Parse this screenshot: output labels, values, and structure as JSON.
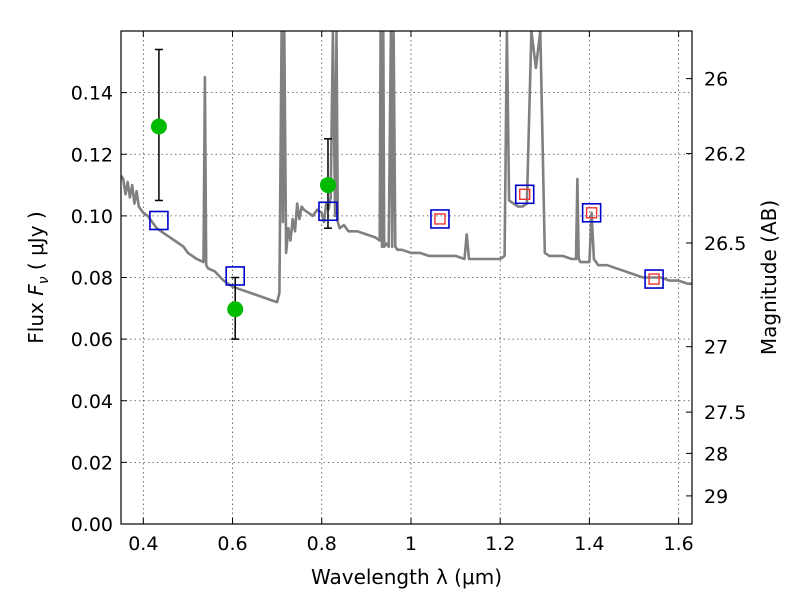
{
  "chart_data": {
    "type": "scatter",
    "xlabel": "Wavelength  λ (μm)",
    "ylabel": "Flux  F_ν  ( μJy )",
    "ylabel_right": "Magnitude (AB)",
    "xlim": [
      0.35,
      1.63
    ],
    "ylim": [
      0,
      0.16
    ],
    "grid": true,
    "x_ticks": [
      0.4,
      0.6,
      0.8,
      1.0,
      1.2,
      1.4,
      1.6
    ],
    "x_tick_labels": [
      "0.4",
      "0.6",
      "0.8",
      "1",
      "1.2",
      "1.4",
      "1.6"
    ],
    "y_ticks": [
      0,
      0.02,
      0.04,
      0.06,
      0.08,
      0.1,
      0.12,
      0.14
    ],
    "y_tick_labels": [
      "0.00",
      "0.02",
      "0.04",
      "0.06",
      "0.08",
      "0.10",
      "0.12",
      "0.14"
    ],
    "mag_ticks": [
      26,
      26.2,
      26.5,
      27,
      27.5,
      28,
      29
    ],
    "mag_tick_labels": [
      "26",
      "26.2",
      "26.5",
      "27",
      "27.5",
      "28",
      "29"
    ],
    "colors": {
      "spectrum": "#808080",
      "observed": "#00bb00",
      "model_blue": "#0000cc",
      "model_red": "#ee3333",
      "errorbar": "#000000"
    },
    "spectrum": {
      "name": "",
      "x": [
        0.35,
        0.355,
        0.36,
        0.365,
        0.37,
        0.375,
        0.38,
        0.385,
        0.39,
        0.4,
        0.41,
        0.42,
        0.43,
        0.44,
        0.45,
        0.46,
        0.47,
        0.48,
        0.49,
        0.5,
        0.52,
        0.535,
        0.538,
        0.541,
        0.545,
        0.56,
        0.58,
        0.6,
        0.62,
        0.64,
        0.66,
        0.68,
        0.7,
        0.705,
        0.71,
        0.713,
        0.716,
        0.72,
        0.725,
        0.73,
        0.735,
        0.74,
        0.745,
        0.75,
        0.755,
        0.76,
        0.77,
        0.78,
        0.79,
        0.8,
        0.805,
        0.81,
        0.815,
        0.82,
        0.825,
        0.83,
        0.833,
        0.836,
        0.84,
        0.85,
        0.86,
        0.88,
        0.9,
        0.92,
        0.93,
        0.932,
        0.935,
        0.938,
        0.94,
        0.945,
        0.95,
        0.955,
        0.958,
        0.961,
        0.965,
        0.97,
        0.98,
        1.0,
        1.02,
        1.04,
        1.06,
        1.08,
        1.1,
        1.12,
        1.125,
        1.13,
        1.14,
        1.16,
        1.18,
        1.2,
        1.21,
        1.215,
        1.22,
        1.23,
        1.24,
        1.25,
        1.26,
        1.27,
        1.28,
        1.29,
        1.3,
        1.31,
        1.32,
        1.34,
        1.36,
        1.37,
        1.373,
        1.376,
        1.38,
        1.4,
        1.405,
        1.41,
        1.42,
        1.44,
        1.46,
        1.48,
        1.5,
        1.52,
        1.54,
        1.56,
        1.58,
        1.6,
        1.62,
        1.63
      ],
      "y": [
        0.113,
        0.112,
        0.107,
        0.111,
        0.106,
        0.11,
        0.104,
        0.108,
        0.103,
        0.101,
        0.1,
        0.098,
        0.096,
        0.095,
        0.094,
        0.093,
        0.092,
        0.091,
        0.09,
        0.088,
        0.086,
        0.085,
        0.145,
        0.084,
        0.083,
        0.082,
        0.079,
        0.077,
        0.076,
        0.075,
        0.074,
        0.073,
        0.072,
        0.075,
        0.16,
        0.098,
        0.16,
        0.088,
        0.096,
        0.092,
        0.099,
        0.095,
        0.104,
        0.099,
        0.103,
        0.102,
        0.101,
        0.1,
        0.102,
        0.101,
        0.098,
        0.104,
        0.102,
        0.106,
        0.16,
        0.1,
        0.16,
        0.098,
        0.096,
        0.097,
        0.095,
        0.095,
        0.094,
        0.093,
        0.092,
        0.16,
        0.09,
        0.16,
        0.09,
        0.091,
        0.09,
        0.16,
        0.09,
        0.16,
        0.09,
        0.089,
        0.089,
        0.088,
        0.088,
        0.087,
        0.087,
        0.087,
        0.087,
        0.086,
        0.094,
        0.086,
        0.086,
        0.086,
        0.086,
        0.086,
        0.087,
        0.16,
        0.105,
        0.104,
        0.103,
        0.103,
        0.104,
        0.16,
        0.148,
        0.16,
        0.088,
        0.087,
        0.087,
        0.087,
        0.086,
        0.086,
        0.112,
        0.086,
        0.085,
        0.085,
        0.101,
        0.086,
        0.084,
        0.084,
        0.083,
        0.082,
        0.081,
        0.08,
        0.08,
        0.08,
        0.079,
        0.079,
        0.078,
        0.078
      ]
    },
    "observed": {
      "name": "",
      "points": [
        {
          "x": 0.435,
          "y": 0.129,
          "err_lo": 0.105,
          "err_hi": 0.154
        },
        {
          "x": 0.606,
          "y": 0.0697,
          "err_lo": 0.06,
          "err_hi": 0.08
        },
        {
          "x": 0.814,
          "y": 0.11,
          "err_lo": 0.096,
          "err_hi": 0.125
        }
      ]
    },
    "model_blue": {
      "name": "",
      "points": [
        {
          "x": 0.435,
          "y": 0.0985
        },
        {
          "x": 0.606,
          "y": 0.0805
        },
        {
          "x": 0.814,
          "y": 0.1015
        },
        {
          "x": 1.065,
          "y": 0.099
        },
        {
          "x": 1.255,
          "y": 0.107
        },
        {
          "x": 1.405,
          "y": 0.101
        },
        {
          "x": 1.545,
          "y": 0.0795
        }
      ]
    },
    "model_red": {
      "name": "",
      "points": [
        {
          "x": 1.065,
          "y": 0.099
        },
        {
          "x": 1.255,
          "y": 0.107
        },
        {
          "x": 1.405,
          "y": 0.101
        },
        {
          "x": 1.545,
          "y": 0.0795
        }
      ]
    }
  }
}
